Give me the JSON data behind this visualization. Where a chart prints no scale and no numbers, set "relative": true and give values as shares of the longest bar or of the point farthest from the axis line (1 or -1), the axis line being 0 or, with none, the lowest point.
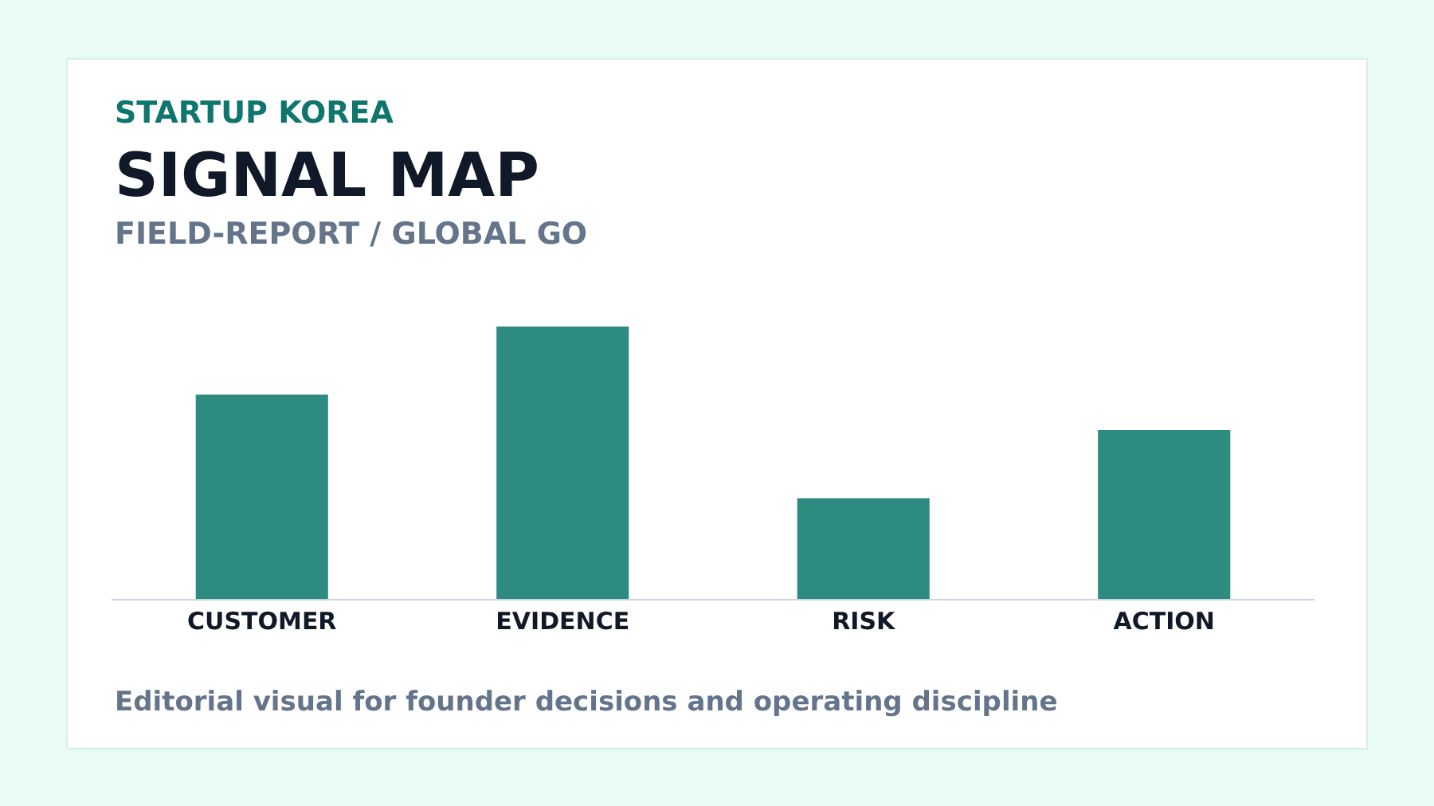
{
  "chart_data": {
    "type": "bar",
    "relative": true,
    "title": "SIGNAL MAP",
    "subtitle": "FIELD-REPORT / GLOBAL GO",
    "annotations": [
      "STARTUP KOREA",
      "Editorial visual for founder decisions and operating discipline"
    ],
    "categories": [
      "CUSTOMER",
      "EVIDENCE",
      "RISK",
      "ACTION"
    ],
    "values": [
      0.75,
      1,
      0.37,
      0.62
    ],
    "color": "#2e8b80"
  }
}
